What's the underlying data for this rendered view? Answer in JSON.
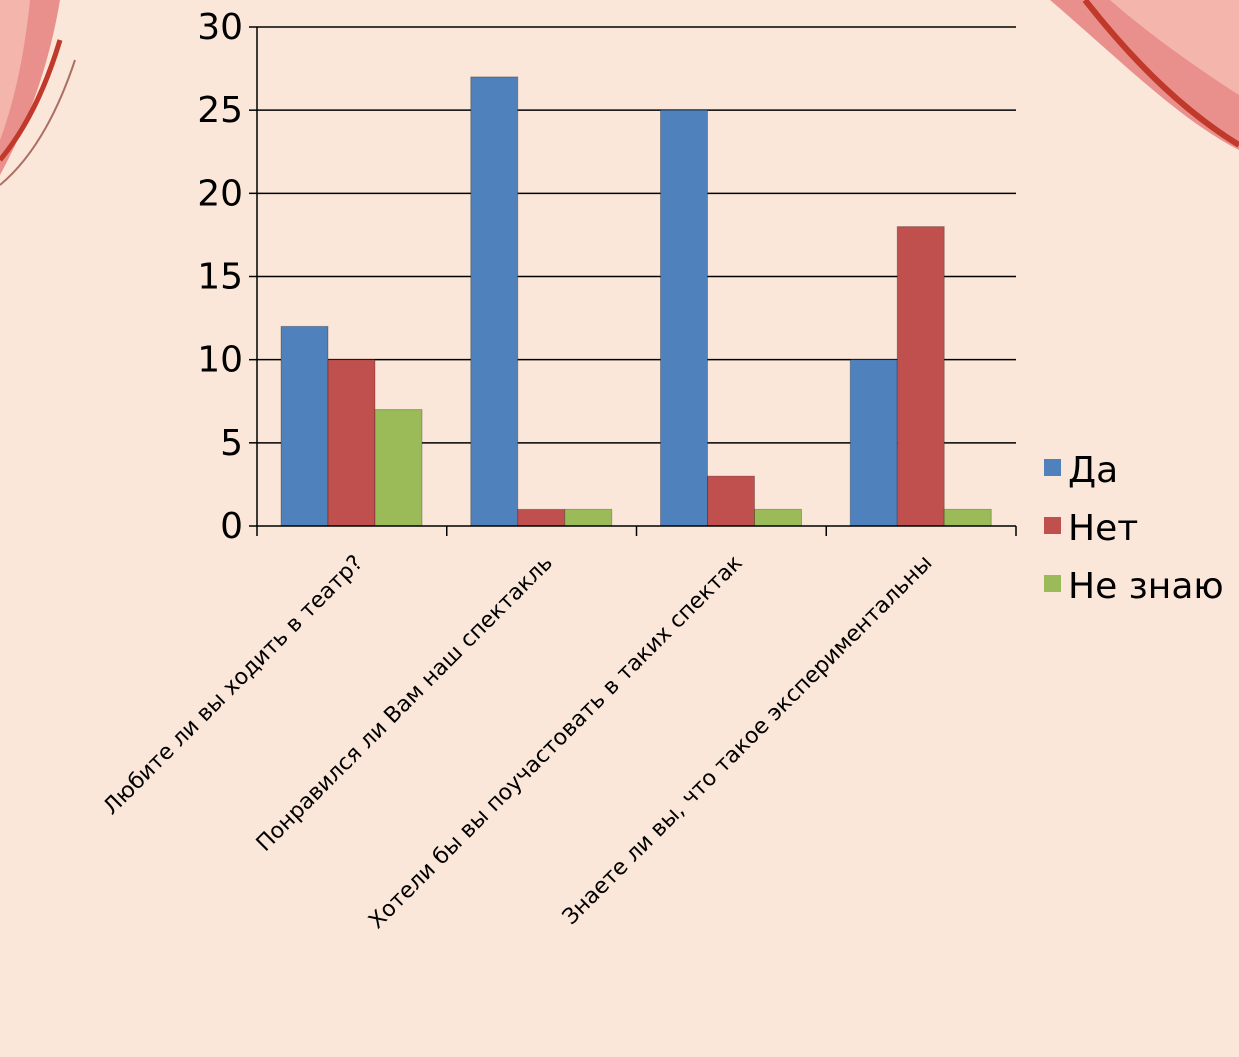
{
  "colors": {
    "background": "#fbe7d9",
    "curtain": "#e9908c",
    "curtain_dark": "#c0392b",
    "grid": "#000000"
  },
  "chart_data": {
    "type": "bar",
    "title": "",
    "xlabel": "",
    "ylabel": "",
    "categories": [
      "Любите ли вы ходить в театр?",
      "Понравился ли Вам наш спектакль",
      "Хотели бы вы поучастовать в таких спектак",
      "Знаете ли вы, что такое экспериментальны"
    ],
    "series": [
      {
        "name": "Да",
        "color": "#4f81bd",
        "values": [
          12,
          27,
          25,
          10
        ]
      },
      {
        "name": "Нет",
        "color": "#c0504d",
        "values": [
          10,
          1,
          3,
          18
        ]
      },
      {
        "name": "Не знаю",
        "color": "#9bbb59",
        "values": [
          7,
          1,
          1,
          1
        ]
      }
    ],
    "ylim": [
      0,
      30
    ],
    "yticks": [
      0,
      5,
      10,
      15,
      20,
      25,
      30
    ],
    "grid": true,
    "legend": "right"
  }
}
